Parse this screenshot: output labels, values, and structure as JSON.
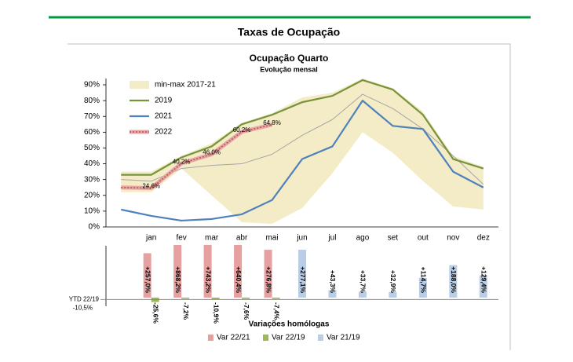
{
  "page_title": "Taxas de Ocupação",
  "chart_data": [
    {
      "type": "line",
      "title": "Ocupação Quarto",
      "subtitle": "Evolução mensal",
      "categories": [
        null,
        "jan",
        "fev",
        "mar",
        "abr",
        "mai",
        "jun",
        "jul",
        "ago",
        "set",
        "out",
        "nov",
        "dez"
      ],
      "ylim": [
        0,
        90
      ],
      "yticks": [
        {
          "value": 0,
          "label": "0%"
        },
        {
          "value": 10,
          "label": "10%"
        },
        {
          "value": 20,
          "label": "20%"
        },
        {
          "value": 30,
          "label": "30%"
        },
        {
          "value": 40,
          "label": "40%"
        },
        {
          "value": 50,
          "label": "50%"
        },
        {
          "value": 60,
          "label": "60%"
        },
        {
          "value": 70,
          "label": "70%"
        },
        {
          "value": 80,
          "label": "80%"
        },
        {
          "value": 90,
          "label": "90%"
        }
      ],
      "legend": "upper left",
      "series": [
        {
          "name": "min-max 2017-21",
          "type": "band",
          "color": "#f3ecc6",
          "lower": [
            22,
            22,
            37,
            20,
            3,
            2,
            12,
            34,
            60,
            47,
            29,
            13,
            11
          ],
          "upper": [
            35,
            35,
            45,
            53,
            66,
            72,
            82,
            85,
            94,
            88,
            73,
            45,
            38
          ]
        },
        {
          "color": "#a6a6a6",
          "values": [
            30,
            29,
            37,
            39,
            40,
            46,
            58,
            68,
            84,
            75,
            62,
            45,
            27
          ]
        },
        {
          "name": "2019",
          "color": "#77933c",
          "values": [
            33,
            33,
            44,
            51,
            65,
            71,
            79,
            83,
            93,
            87,
            71,
            43,
            37
          ]
        },
        {
          "name": "2021",
          "color": "#4f81bd",
          "values": [
            11,
            7,
            4,
            5,
            8,
            17,
            43,
            51,
            80,
            64,
            62,
            35,
            25
          ]
        },
        {
          "name": "2022",
          "color": "#e6a5a5",
          "marker_color": "#c0504d",
          "values": [
            25,
            24.6,
            40.2,
            46.0,
            60.2,
            64.8,
            null,
            null,
            null,
            null,
            null,
            null,
            null
          ],
          "value_labels": [
            null,
            "24,6%",
            "40,2%",
            "46,0%",
            "60,2%",
            "64,8%",
            null,
            null,
            null,
            null,
            null,
            null,
            null
          ]
        }
      ]
    },
    {
      "type": "bar",
      "title": "Variações homólogas",
      "ylim": [
        -50,
        300
      ],
      "legend": "lower center",
      "ytd": {
        "label": "YTD 22/19",
        "value": -10.5,
        "value_label": "-10,5%"
      },
      "series": [
        {
          "name": "Var 22/21",
          "color": "#e6a0a0",
          "values": [
            null,
            257.0,
            868.2,
            743.2,
            640.4,
            276.8,
            null,
            null,
            null,
            null,
            null,
            null,
            null
          ],
          "value_labels": [
            null,
            "+257,0%",
            "+868,2%",
            "+743,2%",
            "+640,4%",
            "+276,8%",
            null,
            null,
            null,
            null,
            null,
            null,
            null
          ]
        },
        {
          "name": "Var 22/19",
          "color": "#9bbb59",
          "values": [
            null,
            -25.6,
            -7.2,
            -10.9,
            -7.6,
            -7.4,
            null,
            null,
            null,
            null,
            null,
            null,
            null
          ],
          "value_labels": [
            null,
            "-25,6%",
            "-7,2%",
            "-10,9%",
            "-7,6%",
            "-7,4%",
            null,
            null,
            null,
            null,
            null,
            null,
            null
          ]
        },
        {
          "name": "Var 21/19",
          "color": "#b9cde5",
          "values": [
            null,
            null,
            null,
            null,
            null,
            null,
            277.1,
            43.3,
            33.7,
            32.9,
            114.7,
            188.0,
            129.4
          ],
          "value_labels": [
            null,
            null,
            null,
            null,
            null,
            null,
            "+277,1%",
            "+43,3%",
            "+33,7%",
            "+32,9%",
            "+114,7%",
            "+188,0%",
            "+129,4%"
          ]
        }
      ]
    }
  ]
}
